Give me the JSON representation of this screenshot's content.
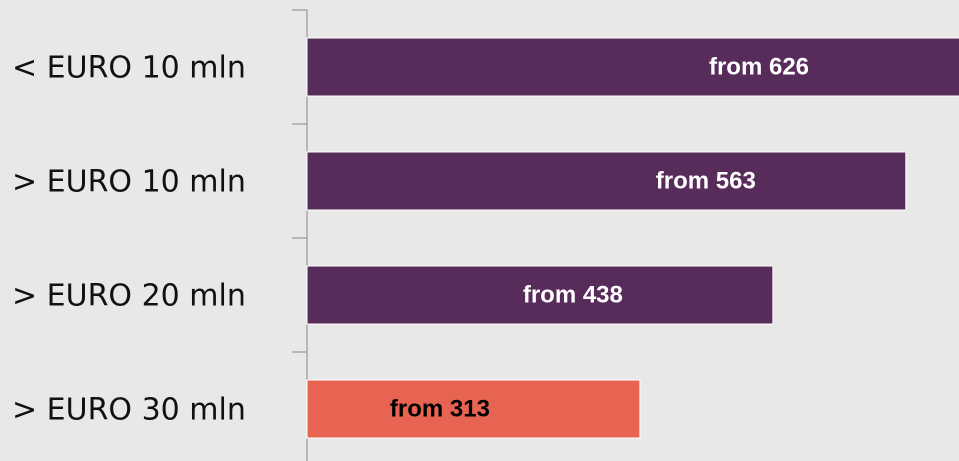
{
  "chart_data": {
    "type": "barh",
    "categories": [
      "< EURO 10 mln",
      "> EURO 10 mln",
      "> EURO 20 mln",
      "> EURO 30 mln"
    ],
    "values": [
      626,
      563,
      438,
      313
    ],
    "value_labels": [
      "from 626",
      "from 563",
      "from 438",
      "from 313"
    ],
    "colors": [
      "#582c5a",
      "#582c5a",
      "#582c5a",
      "#e86452"
    ],
    "label_colors": [
      "#ffffff",
      "#ffffff",
      "#ffffff",
      "#000000"
    ],
    "xlim": [
      0,
      613
    ]
  }
}
